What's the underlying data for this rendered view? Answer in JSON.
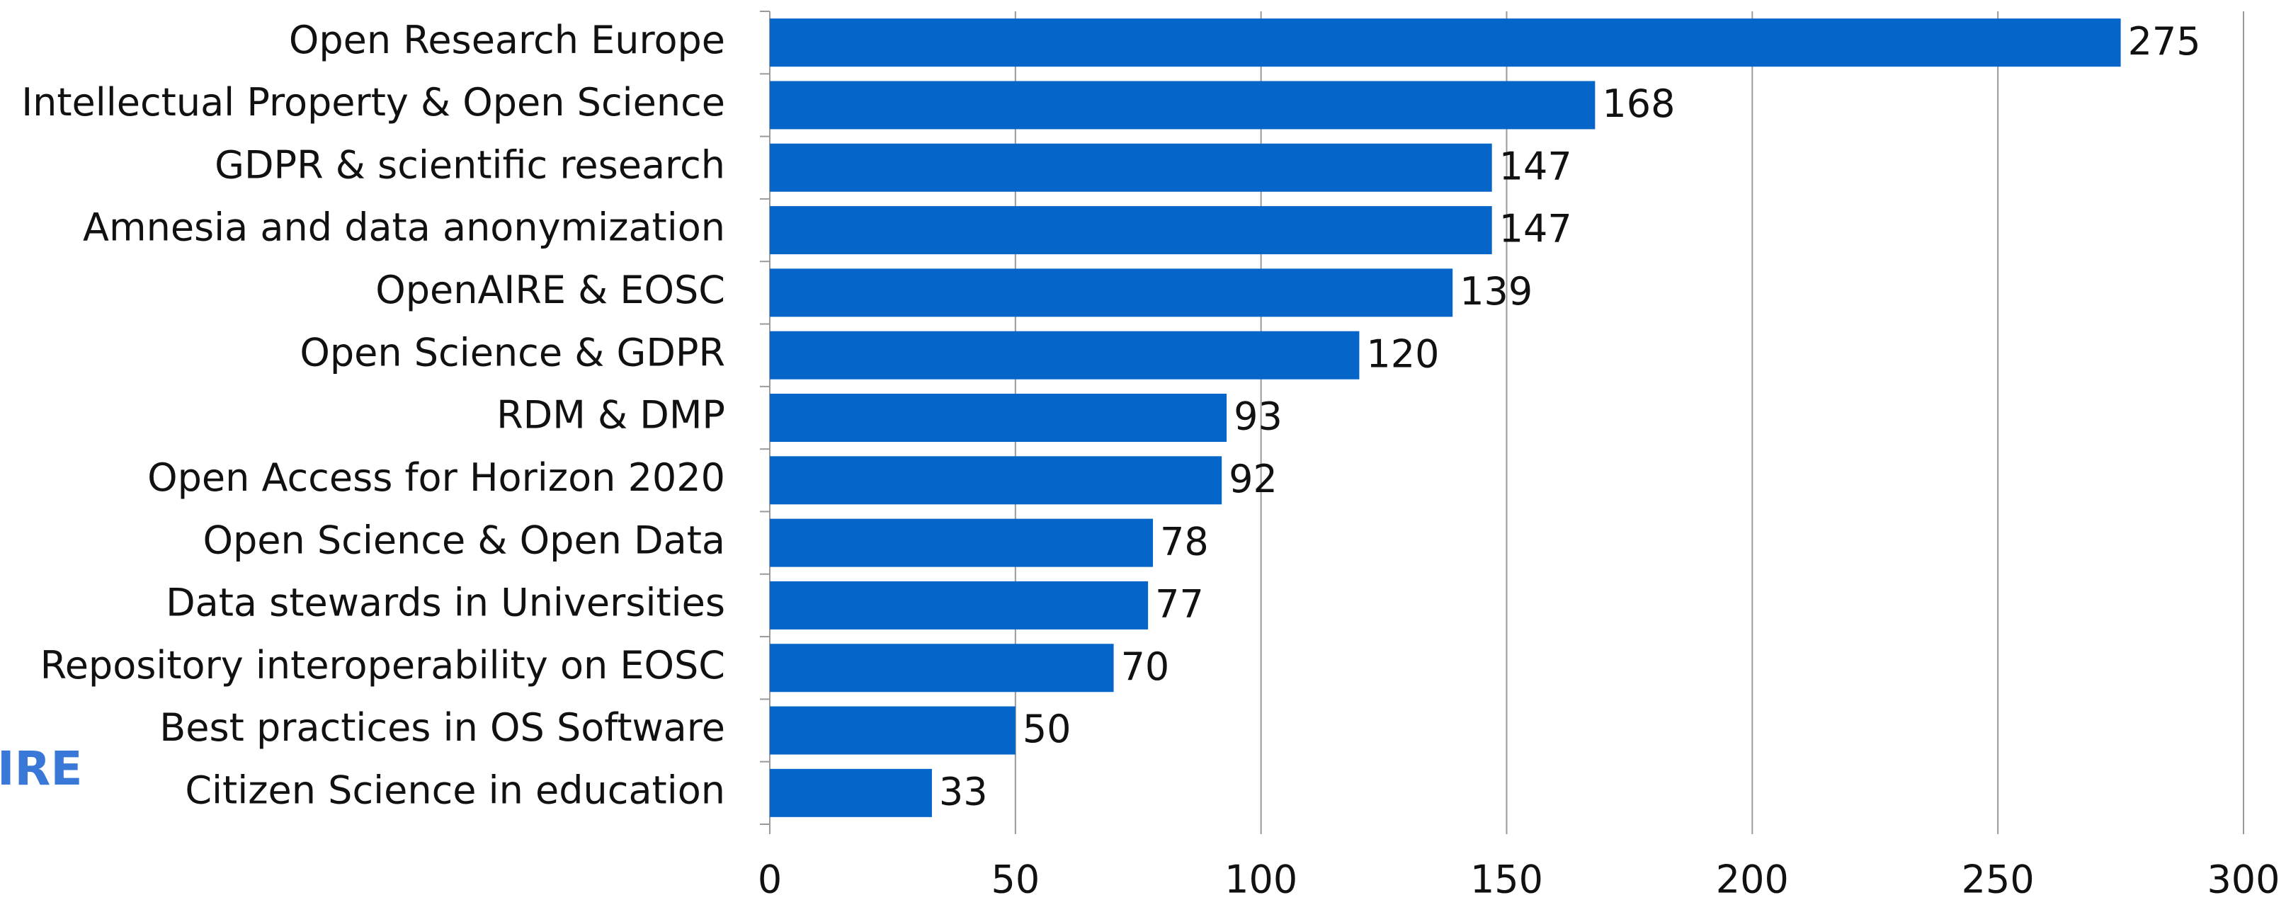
{
  "logo": "IRE",
  "chart_data": {
    "type": "barh",
    "categories": [
      "Open Research Europe",
      "Intellectual Property & Open Science",
      "GDPR & scientific research",
      "Amnesia and data anonymization",
      "OpenAIRE & EOSC",
      "Open Science & GDPR",
      "RDM & DMP",
      "Open Access for Horizon 2020",
      "Open Science & Open Data",
      "Data stewards in Universities",
      "Repository interoperability on EOSC",
      "Best practices in OS Software",
      "Citizen Science in education"
    ],
    "values": [
      275,
      168,
      147,
      147,
      139,
      120,
      93,
      92,
      78,
      77,
      70,
      50,
      33
    ],
    "color": "#0565c8",
    "xlim": [
      0,
      300
    ],
    "xticks": [
      0,
      50,
      100,
      150,
      200,
      250,
      300
    ],
    "grid": true
  }
}
